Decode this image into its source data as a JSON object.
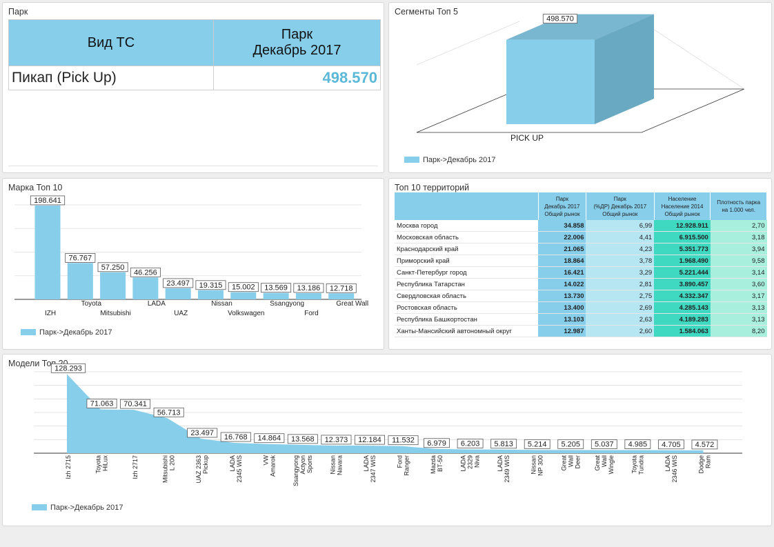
{
  "panels": {
    "park_title": "Парк",
    "segments_title": "Сегменты Топ 5",
    "brands_title": "Марка Топ 10",
    "territories_title": "Топ 10 территорий",
    "models_title": "Модели Топ 20"
  },
  "kpi": {
    "col1": "Вид ТС",
    "col2_line1": "Парк",
    "col2_line2": "Декабрь 2017",
    "row_label": "Пикап (Pick Up)",
    "row_value": "498.570"
  },
  "legend_label": "Парк->Декабрь 2017",
  "colors": {
    "bar": "#87ceeb",
    "bar_side": "#6aa9c2",
    "bar_top": "#79b6cf",
    "value": "#5bb8d8"
  },
  "chart_data": [
    {
      "id": "segments",
      "type": "bar",
      "categories": [
        "PICK UP"
      ],
      "series": [
        {
          "name": "Парк->Декабрь 2017",
          "values": [
            498570
          ]
        }
      ],
      "labels": [
        "498.570"
      ],
      "style": "3d"
    },
    {
      "id": "brands",
      "type": "bar",
      "categories": [
        "IZH",
        "Toyota",
        "Mitsubishi",
        "LADA",
        "UAZ",
        "Nissan",
        "Volkswagen",
        "Ssangyong",
        "Ford",
        "Great Wall"
      ],
      "series": [
        {
          "name": "Парк->Декабрь 2017",
          "values": [
            198641,
            76767,
            57250,
            46256,
            23497,
            19315,
            15002,
            13569,
            13186,
            12718
          ]
        }
      ],
      "labels": [
        "198.641",
        "76.767",
        "57.250",
        "46.256",
        "23.497",
        "19.315",
        "15.002",
        "13.569",
        "13.186",
        "12.718"
      ],
      "grid": true
    },
    {
      "id": "models",
      "type": "area",
      "categories": [
        [
          "Izh 2715"
        ],
        [
          "Toyota",
          "HiLux"
        ],
        [
          "Izh 2717"
        ],
        [
          "Mitsubishi",
          "L 200"
        ],
        [
          "UAZ 2363",
          "Pickup"
        ],
        [
          "LADA",
          "2345 WIS"
        ],
        [
          "VW",
          "Amarok"
        ],
        [
          "Ssangyong",
          "Actyon",
          "Sports"
        ],
        [
          "Nissan",
          "Navara"
        ],
        [
          "LADA",
          "2347 WIS"
        ],
        [
          "Ford",
          "Ranger"
        ],
        [
          "Mazda",
          "BT-50"
        ],
        [
          "LADA",
          "2329",
          "Niva"
        ],
        [
          "LADA",
          "2349 WIS"
        ],
        [
          "Nissan",
          "NP 300"
        ],
        [
          "Great",
          "Wall",
          "Deer"
        ],
        [
          "Great",
          "Wall",
          "Wingle"
        ],
        [
          "Toyota",
          "Tundra"
        ],
        [
          "LADA",
          "2346 WIS"
        ],
        [
          "Dodge",
          "Ram"
        ]
      ],
      "series": [
        {
          "name": "Парк->Декабрь 2017",
          "values": [
            128293,
            71063,
            70341,
            56713,
            23497,
            16768,
            14864,
            13568,
            12373,
            12184,
            11532,
            6979,
            6203,
            5813,
            5214,
            5205,
            5037,
            4985,
            4705,
            4572
          ]
        }
      ],
      "labels": [
        "128.293",
        "71.063",
        "70.341",
        "56.713",
        "23.497",
        "16.768",
        "14.864",
        "13.568",
        "12.373",
        "12.184",
        "11.532",
        "6.979",
        "6.203",
        "5.813",
        "5.214",
        "5.205",
        "5.037",
        "4.985",
        "4.705",
        "4.572"
      ],
      "grid": true
    },
    {
      "id": "territories",
      "type": "table",
      "headers": [
        "",
        [
          "Парк",
          "Декабрь 2017",
          "Общий рынок"
        ],
        [
          "Парк",
          "(%ДР) Декабрь 2017",
          "Общий рынок"
        ],
        [
          "Население",
          "Население 2014",
          "Общий рынок"
        ],
        [
          "Плотность парка",
          "на 1.000 чел."
        ]
      ],
      "rows": [
        [
          "Москва город",
          "34.858",
          "6,99",
          "12.928.911",
          "2,70"
        ],
        [
          "Московская область",
          "22.006",
          "4,41",
          "6.915.500",
          "3,18"
        ],
        [
          "Краснодарский край",
          "21.065",
          "4,23",
          "5.351.773",
          "3,94"
        ],
        [
          "Приморский край",
          "18.864",
          "3,78",
          "1.968.490",
          "9,58"
        ],
        [
          "Санкт-Петербург город",
          "16.421",
          "3,29",
          "5.221.444",
          "3,14"
        ],
        [
          "Республика Татарстан",
          "14.022",
          "2,81",
          "3.890.457",
          "3,60"
        ],
        [
          "Свердловская область",
          "13.730",
          "2,75",
          "4.332.347",
          "3,17"
        ],
        [
          "Ростовская область",
          "13.400",
          "2,69",
          "4.285.143",
          "3,13"
        ],
        [
          "Республика Башкортостан",
          "13.103",
          "2,63",
          "4.189.283",
          "3,13"
        ],
        [
          "Ханты-Мансийский автономный округ",
          "12.987",
          "2,60",
          "1.584.063",
          "8,20"
        ]
      ]
    }
  ]
}
